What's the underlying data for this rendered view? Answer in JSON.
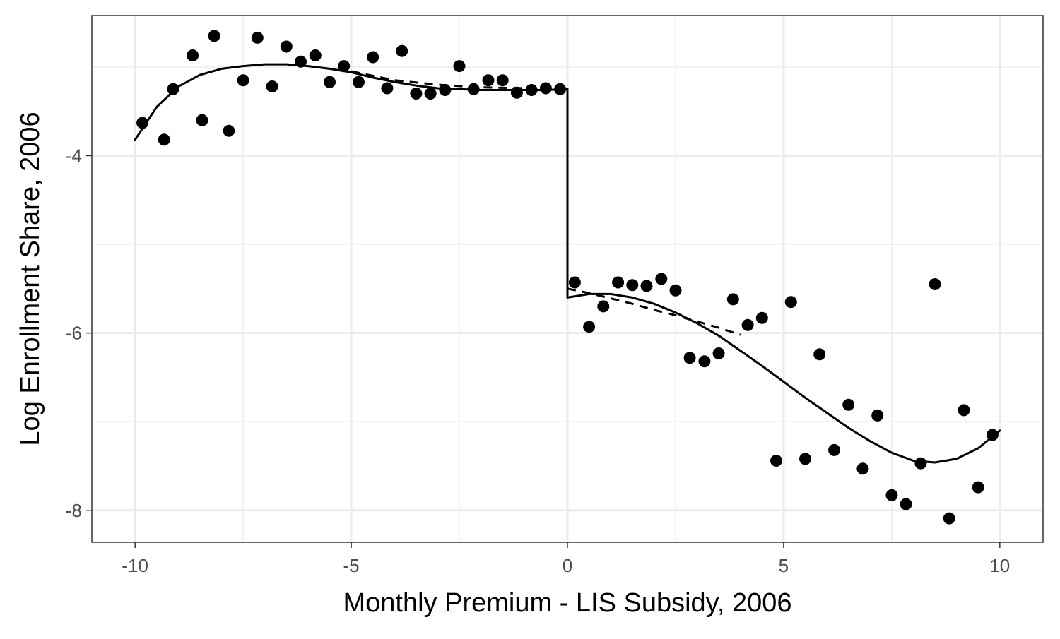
{
  "chart_data": {
    "type": "scatter",
    "title": "",
    "xlabel": "Monthly Premium - LIS Subsidy, 2006",
    "ylabel": "Log Enrollment Share, 2006",
    "xlim": [
      -11,
      11
    ],
    "ylim": [
      -8.36,
      -2.42
    ],
    "x_ticks": [
      -10,
      -5,
      0,
      5,
      10
    ],
    "x_tick_labels": [
      "-10",
      "-5",
      "0",
      "5",
      "10"
    ],
    "y_ticks": [
      -8,
      -6,
      -4
    ],
    "y_tick_labels": [
      "-8",
      "-6",
      "-4"
    ],
    "x_minor_grid": [
      -7.5,
      -2.5,
      2.5,
      7.5
    ],
    "y_minor_grid": [
      -7,
      -5,
      -3
    ],
    "grid": true,
    "theme": "bw",
    "colors": {
      "points": "#000000",
      "lines": "#000000",
      "grid": "#ebebeb",
      "panel_border": "#333333",
      "tick_label": "#4d4d4d"
    },
    "series": [
      {
        "kind": "points",
        "x": [
          -9.83,
          -9.33,
          -9.12,
          -8.67,
          -8.45,
          -8.17,
          -7.83,
          -7.5,
          -7.17,
          -6.83,
          -6.5,
          -6.17,
          -5.83,
          -5.5,
          -5.17,
          -4.83,
          -4.5,
          -4.17,
          -3.83,
          -3.5,
          -3.17,
          -2.83,
          -2.5,
          -2.17,
          -1.83,
          -1.5,
          -1.17,
          -0.83,
          -0.5,
          -0.17,
          0.17,
          0.5,
          0.83,
          1.17,
          1.5,
          1.83,
          2.17,
          2.5,
          2.83,
          3.17,
          3.5,
          3.83,
          4.17,
          4.5,
          4.83,
          5.17,
          5.5,
          5.83,
          6.17,
          6.5,
          6.83,
          7.17,
          7.5,
          7.83,
          8.17,
          8.5,
          8.83,
          9.17,
          9.5,
          9.83
        ],
        "y": [
          -3.63,
          -3.82,
          -3.25,
          -2.87,
          -3.6,
          -2.65,
          -3.72,
          -3.15,
          -2.67,
          -3.22,
          -2.77,
          -2.94,
          -2.87,
          -3.17,
          -2.99,
          -3.17,
          -2.89,
          -3.24,
          -2.82,
          -3.3,
          -3.3,
          -3.26,
          -2.99,
          -3.25,
          -3.15,
          -3.15,
          -3.29,
          -3.26,
          -3.24,
          -3.25,
          -5.43,
          -5.93,
          -5.7,
          -5.43,
          -5.46,
          -5.47,
          -5.39,
          -5.52,
          -6.28,
          -6.32,
          -6.23,
          -5.62,
          -5.91,
          -5.83,
          -7.44,
          -5.65,
          -7.42,
          -6.24,
          -7.32,
          -6.81,
          -7.53,
          -6.93,
          -7.83,
          -7.93,
          -7.47,
          -5.45,
          -8.09,
          -6.87,
          -7.74,
          -7.15
        ]
      },
      {
        "kind": "line",
        "style": "solid",
        "segments": [
          {
            "x": [
              -10,
              -9.5,
              -9,
              -8.5,
              -8,
              -7.5,
              -7,
              -6.5,
              -6,
              -5.5,
              -5,
              -4.5,
              -4,
              -3.5,
              -3,
              -2.5,
              -2,
              -1.5,
              -1,
              -0.5,
              0
            ],
            "y": [
              -3.82,
              -3.45,
              -3.22,
              -3.09,
              -3.02,
              -2.99,
              -2.97,
              -2.97,
              -2.99,
              -3.02,
              -3.06,
              -3.12,
              -3.17,
              -3.21,
              -3.24,
              -3.25,
              -3.26,
              -3.26,
              -3.26,
              -3.26,
              -3.25
            ]
          },
          {
            "x": [
              0,
              0
            ],
            "y": [
              -3.25,
              -5.6
            ]
          },
          {
            "x": [
              0,
              0.5,
              1,
              1.5,
              2,
              2.5,
              3,
              3.5,
              4,
              4.5,
              5,
              5.5,
              6,
              6.5,
              7,
              7.5,
              8,
              8.5,
              9,
              9.5,
              10
            ],
            "y": [
              -5.6,
              -5.56,
              -5.56,
              -5.6,
              -5.67,
              -5.77,
              -5.89,
              -6.03,
              -6.2,
              -6.37,
              -6.55,
              -6.73,
              -6.9,
              -7.07,
              -7.22,
              -7.35,
              -7.44,
              -7.46,
              -7.42,
              -7.3,
              -7.1
            ]
          }
        ]
      },
      {
        "kind": "line",
        "style": "dashed",
        "segments": [
          {
            "x": [
              -5,
              -4,
              -3,
              -2,
              -1,
              0
            ],
            "y": [
              -3.05,
              -3.15,
              -3.2,
              -3.23,
              -3.24,
              -3.25
            ]
          },
          {
            "x": [
              0,
              0.5,
              1,
              1.5,
              2,
              2.5,
              3,
              3.5,
              4
            ],
            "y": [
              -5.5,
              -5.55,
              -5.61,
              -5.67,
              -5.74,
              -5.8,
              -5.87,
              -5.94,
              -6.02
            ]
          }
        ]
      }
    ]
  }
}
